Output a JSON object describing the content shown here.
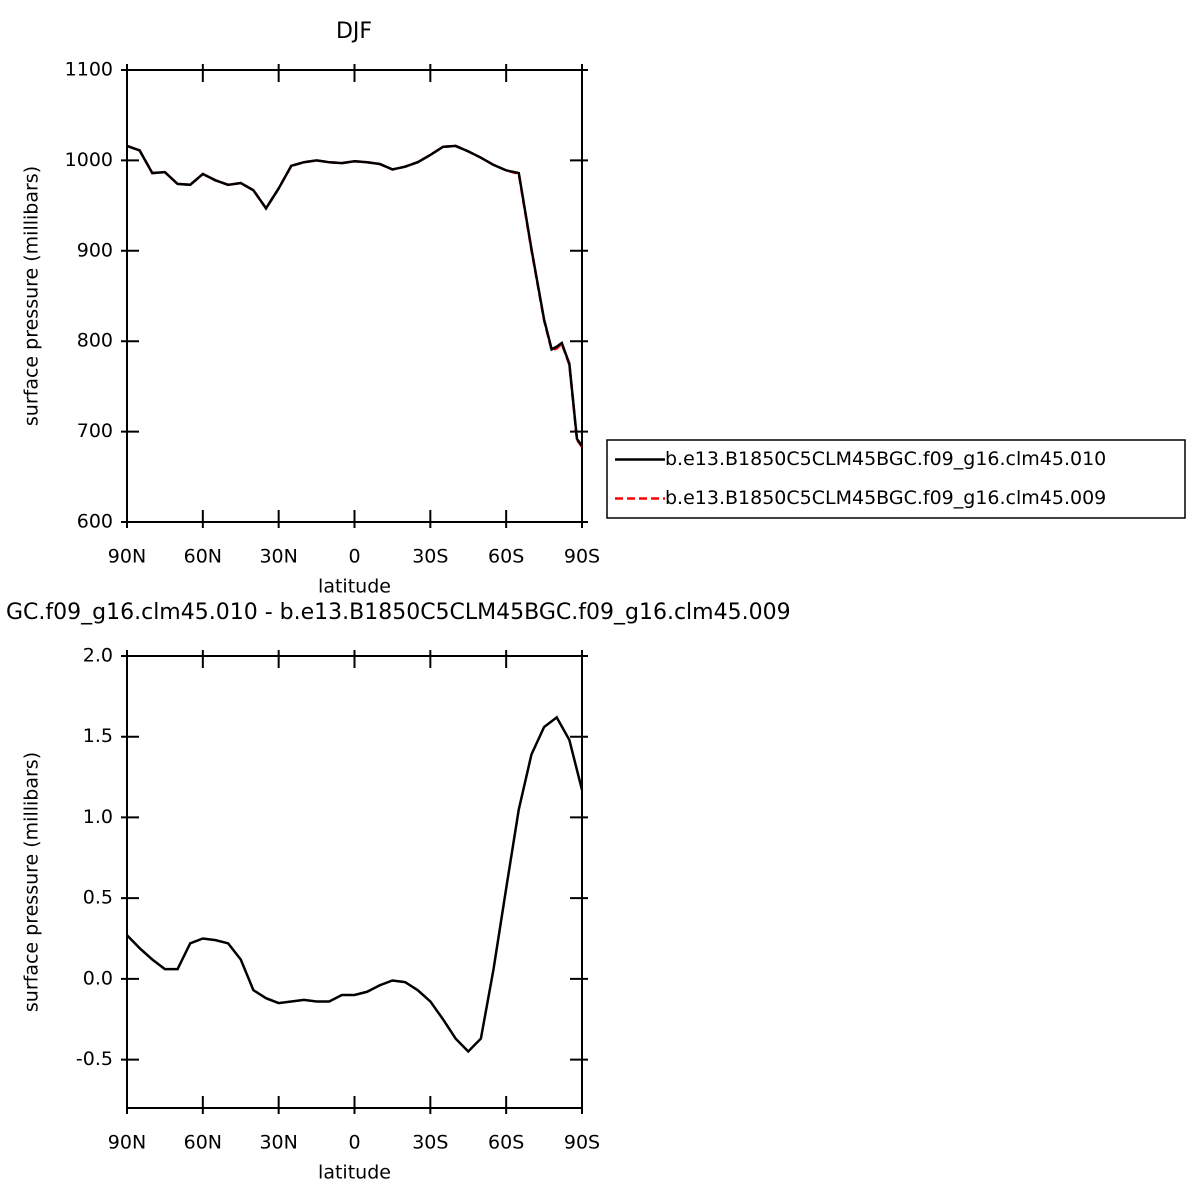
{
  "chart_data": [
    {
      "type": "line",
      "title": "DJF",
      "xlabel": "latitude",
      "ylabel": "surface pressure (millibars)",
      "x": [
        90,
        85,
        80,
        75,
        70,
        65,
        60,
        55,
        50,
        45,
        40,
        35,
        30,
        25,
        20,
        15,
        10,
        5,
        0,
        -5,
        -10,
        -15,
        -20,
        -25,
        -30,
        -35,
        -40,
        -45,
        -50,
        -55,
        -60,
        -65,
        -70,
        -75,
        -78,
        -80,
        -82,
        -85,
        -88,
        -90
      ],
      "series": [
        {
          "name": "b.e13.B1850C5CLM45BGC.f09_g16.clm45.009",
          "color": "#ff0000",
          "style": "dashed",
          "values": [
            1016,
            1011,
            986,
            987,
            974,
            973,
            985,
            978,
            973,
            975,
            967,
            947,
            969,
            994,
            998,
            1000,
            998,
            997,
            999,
            998,
            996,
            990,
            993,
            998,
            1006,
            1015,
            1016,
            1010,
            1003,
            995,
            989,
            985,
            901,
            823,
            790,
            792,
            797,
            774,
            691,
            683
          ]
        },
        {
          "name": "b.e13.B1850C5CLM45BGC.f09_g16.clm45.010",
          "color": "#000000",
          "style": "solid",
          "values": [
            1016,
            1011,
            986,
            987,
            974,
            973,
            985,
            978,
            973,
            975,
            967,
            947,
            969,
            994,
            998,
            1000,
            998,
            997,
            999,
            998,
            996,
            990,
            993,
            998,
            1006,
            1015,
            1016,
            1010,
            1003,
            995,
            989,
            986,
            902,
            824,
            791,
            794,
            798,
            775,
            692,
            684
          ]
        }
      ],
      "xlim": [
        90,
        -90
      ],
      "xticks": [
        {
          "value": 90,
          "label": "90N"
        },
        {
          "value": 60,
          "label": "60N"
        },
        {
          "value": 30,
          "label": "30N"
        },
        0,
        {
          "value": -30,
          "label": "30S"
        },
        {
          "value": -60,
          "label": "60S"
        },
        {
          "value": -90,
          "label": "90S"
        }
      ],
      "ylim": [
        600,
        1100
      ],
      "yticks": [
        600,
        700,
        800,
        900,
        1000,
        1100
      ],
      "legend": "right"
    },
    {
      "type": "line",
      "title": "GC.f09_g16.clm45.010 - b.e13.B1850C5CLM45BGC.f09_g16.clm45.009",
      "xlabel": "latitude",
      "ylabel": "surface pressure (millibars)",
      "x": [
        90,
        85,
        80,
        75,
        70,
        65,
        60,
        55,
        50,
        45,
        40,
        35,
        30,
        25,
        20,
        15,
        10,
        5,
        0,
        -5,
        -10,
        -15,
        -20,
        -25,
        -30,
        -35,
        -40,
        -45,
        -50,
        -55,
        -60,
        -65,
        -70,
        -75,
        -80,
        -85,
        -90
      ],
      "series": [
        {
          "color": "#000000",
          "style": "solid",
          "values": [
            0.27,
            0.19,
            0.12,
            0.06,
            0.06,
            0.22,
            0.25,
            0.24,
            0.22,
            0.12,
            -0.07,
            -0.12,
            -0.15,
            -0.14,
            -0.13,
            -0.14,
            -0.14,
            -0.1,
            -0.1,
            -0.08,
            -0.04,
            -0.01,
            -0.02,
            -0.07,
            -0.14,
            -0.25,
            -0.37,
            -0.45,
            -0.37,
            0.06,
            0.56,
            1.05,
            1.39,
            1.56,
            1.62,
            1.48,
            1.17
          ]
        }
      ],
      "xlim": [
        90,
        -90
      ],
      "xticks": [
        {
          "value": 90,
          "label": "90N"
        },
        {
          "value": 60,
          "label": "60N"
        },
        {
          "value": 30,
          "label": "30N"
        },
        0,
        {
          "value": -30,
          "label": "30S"
        },
        {
          "value": -60,
          "label": "60S"
        },
        {
          "value": -90,
          "label": "90S"
        }
      ],
      "ylim": [
        -0.8,
        2.0
      ],
      "yticks": [
        -0.5,
        {
          "value": 0,
          "label": "0.0"
        },
        0.5,
        {
          "value": 1,
          "label": "1.0"
        },
        1.5,
        {
          "value": 2,
          "label": "2.0"
        }
      ]
    }
  ]
}
